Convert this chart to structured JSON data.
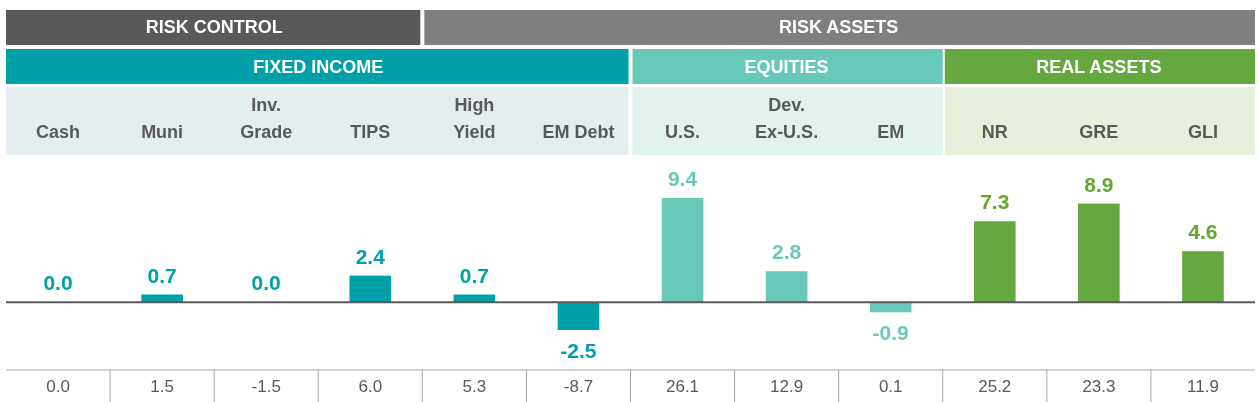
{
  "chart_data": {
    "type": "bar",
    "categories": [
      "Cash",
      "Muni",
      "Inv.\nGrade",
      "TIPS",
      "High\nYield",
      "EM Debt",
      "U.S.",
      "Dev.\nEx-U.S.",
      "EM",
      "NR",
      "GRE",
      "GLI"
    ],
    "values": [
      0.0,
      0.7,
      0.0,
      2.4,
      0.7,
      -2.5,
      9.4,
      2.8,
      -0.9,
      7.3,
      8.9,
      4.6
    ],
    "colors": [
      "#00a0a8",
      "#00a0a8",
      "#00a0a8",
      "#00a0a8",
      "#00a0a8",
      "#00a0a8",
      "#69c9b9",
      "#69c9b9",
      "#69c9b9",
      "#66a73f",
      "#66a73f",
      "#66a73f"
    ],
    "value_labels": [
      "0.0",
      "0.7",
      "0.0",
      "2.4",
      "0.7",
      "-2.5",
      "9.4",
      "2.8",
      "-0.9",
      "7.3",
      "8.9",
      "4.6"
    ],
    "annotations": [
      "RISK CONTROL",
      "RISK ASSETS",
      "FIXED INCOME",
      "EQUITIES",
      "REAL ASSETS",
      "0.0",
      "1.5",
      "-1.5",
      "6.0",
      "5.3",
      "-8.7",
      "26.1",
      "12.9",
      "0.1",
      "25.2",
      "23.3",
      "11.9"
    ]
  }
}
